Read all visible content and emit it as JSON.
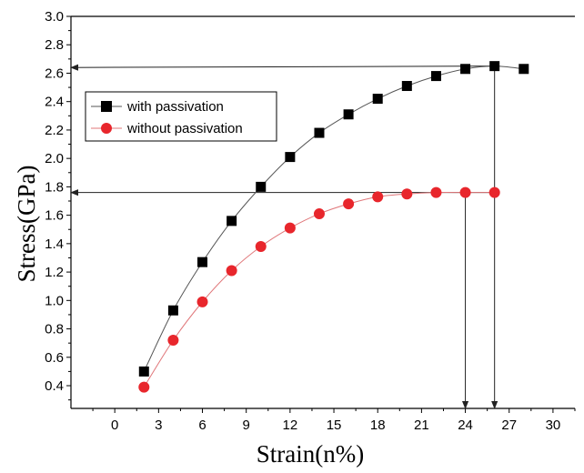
{
  "chart_data": {
    "type": "scatter",
    "xlabel": "Strain(n%)",
    "ylabel": "Stress(GPa)",
    "xlim": [
      -3,
      31.5
    ],
    "ylim": [
      0.24,
      3.0
    ],
    "xticks": [
      0,
      3,
      6,
      9,
      12,
      15,
      18,
      21,
      24,
      27,
      30
    ],
    "yticks": [
      0.4,
      0.6,
      0.8,
      1.0,
      1.2,
      1.4,
      1.6,
      1.8,
      2.0,
      2.2,
      2.4,
      2.6,
      2.8,
      3.0
    ],
    "xtick_labels": [
      "0",
      "3",
      "6",
      "9",
      "12",
      "15",
      "18",
      "21",
      "24",
      "27",
      "30"
    ],
    "ytick_labels": [
      "0.4",
      "0.6",
      "0.8",
      "1.0",
      "1.2",
      "1.4",
      "1.6",
      "1.8",
      "2.0",
      "2.2",
      "2.4",
      "2.6",
      "2.8",
      "3.0"
    ],
    "legend_position": "upper-left",
    "grid": false,
    "series": [
      {
        "name": "with passivation",
        "marker": "square",
        "color": "#000000",
        "line_color": "#555555",
        "x": [
          2,
          4,
          6,
          8,
          10,
          12,
          14,
          16,
          18,
          20,
          22,
          24,
          26,
          28
        ],
        "y": [
          0.5,
          0.93,
          1.27,
          1.56,
          1.8,
          2.01,
          2.18,
          2.31,
          2.42,
          2.51,
          2.58,
          2.63,
          2.65,
          2.63
        ]
      },
      {
        "name": "without passivation",
        "marker": "circle",
        "color": "#e8262c",
        "line_color": "#e0777a",
        "x": [
          2,
          4,
          6,
          8,
          10,
          12,
          14,
          16,
          18,
          20,
          22,
          24,
          26
        ],
        "y": [
          0.39,
          0.72,
          0.99,
          1.21,
          1.38,
          1.51,
          1.61,
          1.68,
          1.73,
          1.75,
          1.76,
          1.76,
          1.76
        ]
      }
    ],
    "annotations": [
      {
        "type": "arrow",
        "from": [
          26,
          2.65
        ],
        "to": [
          -3,
          2.64
        ]
      },
      {
        "type": "arrow",
        "from": [
          26,
          1.76
        ],
        "to": [
          -3,
          1.76
        ]
      },
      {
        "type": "arrow",
        "from": [
          24,
          1.76
        ],
        "to": [
          24,
          0.24
        ]
      },
      {
        "type": "arrow",
        "from": [
          26,
          2.65
        ],
        "to": [
          26,
          0.24
        ]
      }
    ]
  }
}
